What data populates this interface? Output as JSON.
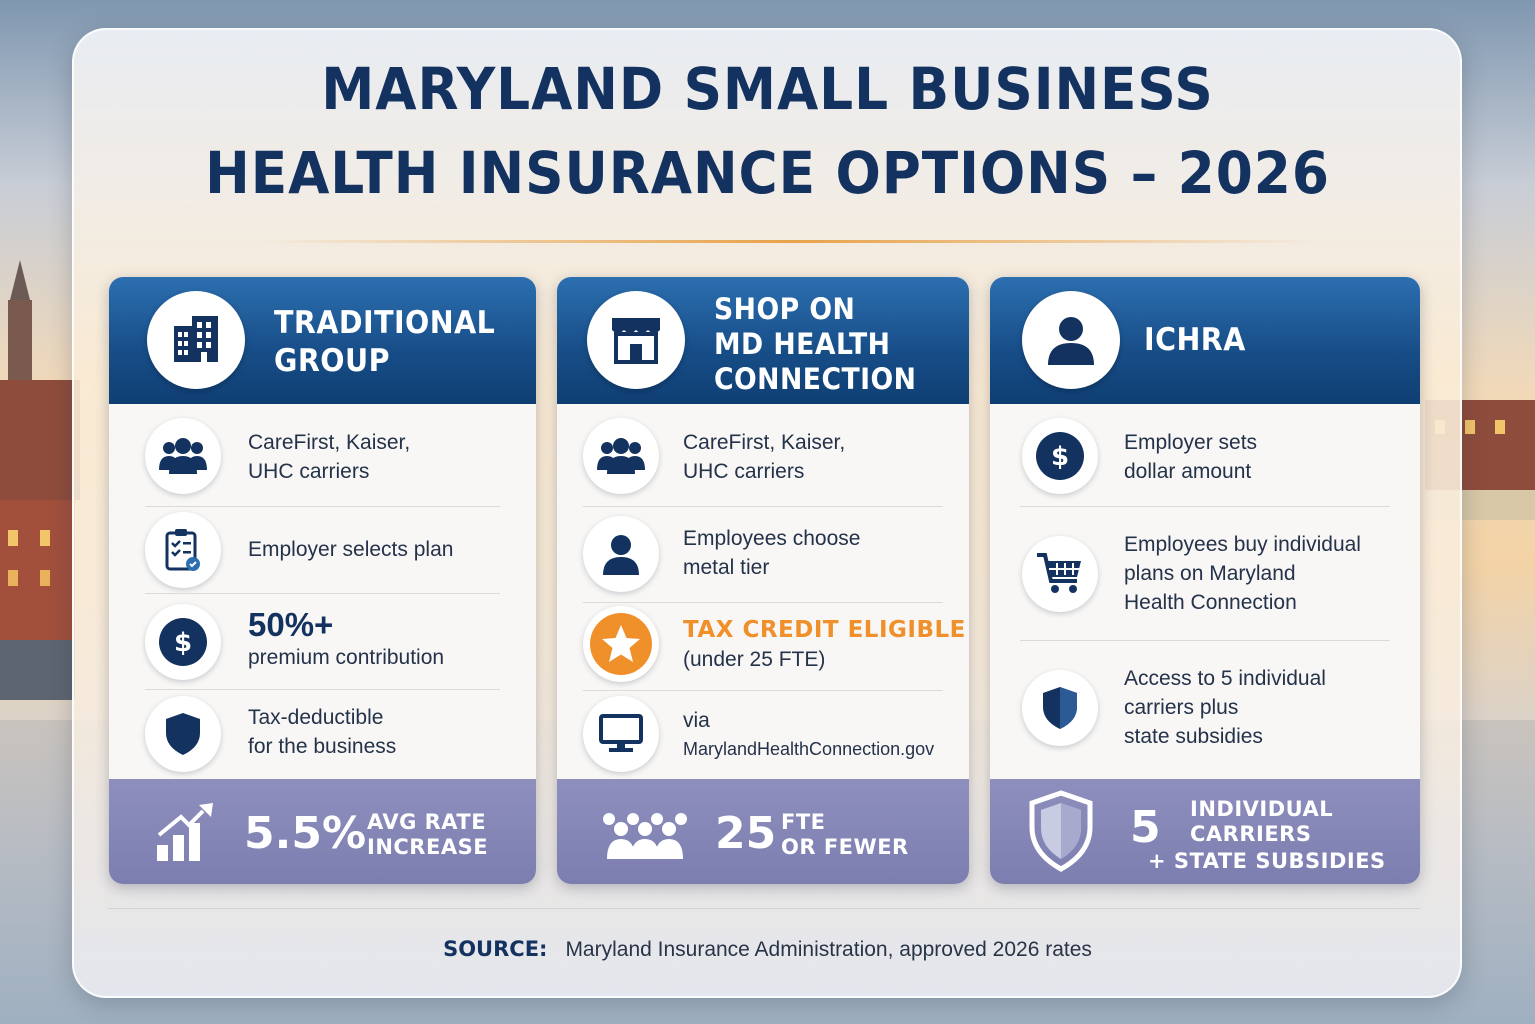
{
  "title": {
    "line1": "MARYLAND SMALL BUSINESS",
    "line2": "HEALTH INSURANCE OPTIONS – 2026"
  },
  "cards": [
    {
      "title_lines": [
        "TRADITIONAL",
        "GROUP"
      ],
      "icon": "building-icon",
      "rows": [
        {
          "icon": "people-group-icon",
          "line1": "CareFirst, Kaiser,",
          "line2": "UHC carriers"
        },
        {
          "icon": "clipboard-check-icon",
          "line1": "Employer selects plan"
        },
        {
          "icon": "dollar-icon",
          "big": "50%+",
          "line2": "premium contribution"
        },
        {
          "icon": "shield-icon",
          "line1": "Tax-deductible",
          "line2": "for the business"
        }
      ],
      "footer": {
        "icon": "bar-chart-up-icon",
        "number": "5.5%",
        "label1": "AVG RATE",
        "label2": "INCREASE"
      }
    },
    {
      "title_lines": [
        "SHOP ON",
        "MD HEALTH",
        "CONNECTION"
      ],
      "icon": "storefront-icon",
      "rows": [
        {
          "icon": "people-group-icon",
          "line1": "CareFirst, Kaiser,",
          "line2": "UHC carriers"
        },
        {
          "icon": "person-icon",
          "line1": "Employees choose",
          "line2": "metal tier"
        },
        {
          "icon": "star-icon",
          "highlight": "TAX CREDIT ELIGIBLE",
          "line2": "(under 25 FTE)"
        },
        {
          "icon": "monitor-icon",
          "line1": "via",
          "line2": "MarylandHealthConnection.gov"
        }
      ],
      "footer": {
        "icon": "people-crowd-icon",
        "number": "25",
        "label1": "FTE",
        "label2": "OR FEWER"
      }
    },
    {
      "title_lines": [
        "ICHRA"
      ],
      "icon": "person-icon",
      "rows": [
        {
          "icon": "dollar-icon",
          "line1": "Employer sets",
          "line2": "dollar amount"
        },
        {
          "icon": "shopping-cart-icon",
          "line1": "Employees buy individual",
          "line2": "plans on Maryland",
          "line3": "Health Connection"
        },
        {
          "icon": "shield-icon",
          "line1": "Access to 5 individual",
          "line2": "carriers plus",
          "line3": "state subsidies"
        }
      ],
      "footer": {
        "icon": "shield-outline-icon",
        "number": "5",
        "label1": "INDIVIDUAL",
        "label2": "CARRIERS",
        "label3": "+ STATE SUBSIDIES"
      }
    }
  ],
  "source": {
    "label": "SOURCE:",
    "text": "Maryland Insurance Administration, approved 2026 rates"
  },
  "colors": {
    "navy": "#13325f",
    "header_blue": "#174d87",
    "footer_purple": "#8e8fbd",
    "accent_orange": "#f0902a"
  }
}
